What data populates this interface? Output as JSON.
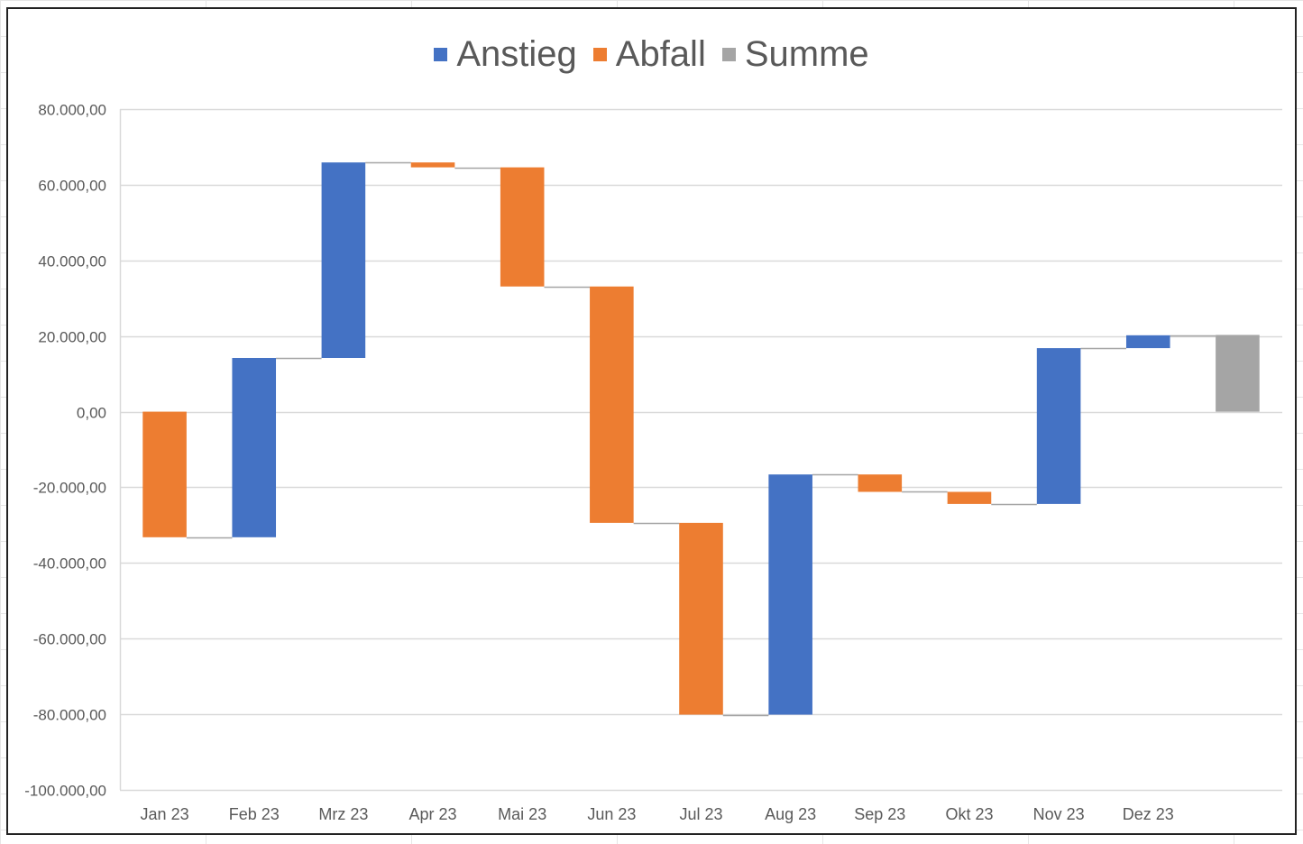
{
  "chart_data": {
    "type": "bar",
    "subtype": "waterfall",
    "title": "",
    "xlabel": "",
    "ylabel": "",
    "legend_position": "top",
    "legend": [
      {
        "name": "Anstieg",
        "color": "#4472C4"
      },
      {
        "name": "Abfall",
        "color": "#ED7D31"
      },
      {
        "name": "Summe",
        "color": "#A5A5A5"
      }
    ],
    "categories": [
      "Jan 23",
      "Feb 23",
      "Mrz 23",
      "Apr 23",
      "Mai 23",
      "Jun 23",
      "Jul 23",
      "Aug 23",
      "Sep 23",
      "Okt 23",
      "Nov 23",
      "Dez 23",
      ""
    ],
    "values": [
      -33200,
      47400,
      51700,
      -1300,
      -31500,
      -62500,
      -50700,
      63500,
      -4600,
      -3200,
      41200,
      3400,
      20300
    ],
    "bars": [
      {
        "category": "Jan 23",
        "type": "Abfall",
        "start": 0,
        "end": -33200
      },
      {
        "category": "Feb 23",
        "type": "Anstieg",
        "start": -33200,
        "end": 14200
      },
      {
        "category": "Mrz 23",
        "type": "Anstieg",
        "start": 14200,
        "end": 65900
      },
      {
        "category": "Apr 23",
        "type": "Abfall",
        "start": 65900,
        "end": 64600
      },
      {
        "category": "Mai 23",
        "type": "Abfall",
        "start": 64600,
        "end": 33100
      },
      {
        "category": "Jun 23",
        "type": "Abfall",
        "start": 33100,
        "end": -29400
      },
      {
        "category": "Jul 23",
        "type": "Abfall",
        "start": -29400,
        "end": -80100
      },
      {
        "category": "Aug 23",
        "type": "Anstieg",
        "start": -80100,
        "end": -16600
      },
      {
        "category": "Sep 23",
        "type": "Abfall",
        "start": -16600,
        "end": -21200
      },
      {
        "category": "Okt 23",
        "type": "Abfall",
        "start": -21200,
        "end": -24400
      },
      {
        "category": "Nov 23",
        "type": "Anstieg",
        "start": -24400,
        "end": 16800
      },
      {
        "category": "Dez 23",
        "type": "Anstieg",
        "start": 16800,
        "end": 20200
      },
      {
        "category": "",
        "type": "Summe",
        "start": 0,
        "end": 20300
      }
    ],
    "ylim": [
      -100000,
      80000
    ],
    "yticks": [
      80000,
      60000,
      40000,
      20000,
      0,
      -20000,
      -40000,
      -60000,
      -80000,
      -100000
    ],
    "ytick_labels": [
      "80.000,00",
      "60.000,00",
      "40.000,00",
      "20.000,00",
      "0,00",
      "-20.000,00",
      "-40.000,00",
      "-60.000,00",
      "-80.000,00",
      "-100.000,00"
    ],
    "grid": true,
    "colors": {
      "Anstieg": "#4472C4",
      "Abfall": "#ED7D31",
      "Summe": "#A5A5A5",
      "connector": "#A6A6A6",
      "grid": "#D9D9D9",
      "text": "#595959"
    }
  }
}
